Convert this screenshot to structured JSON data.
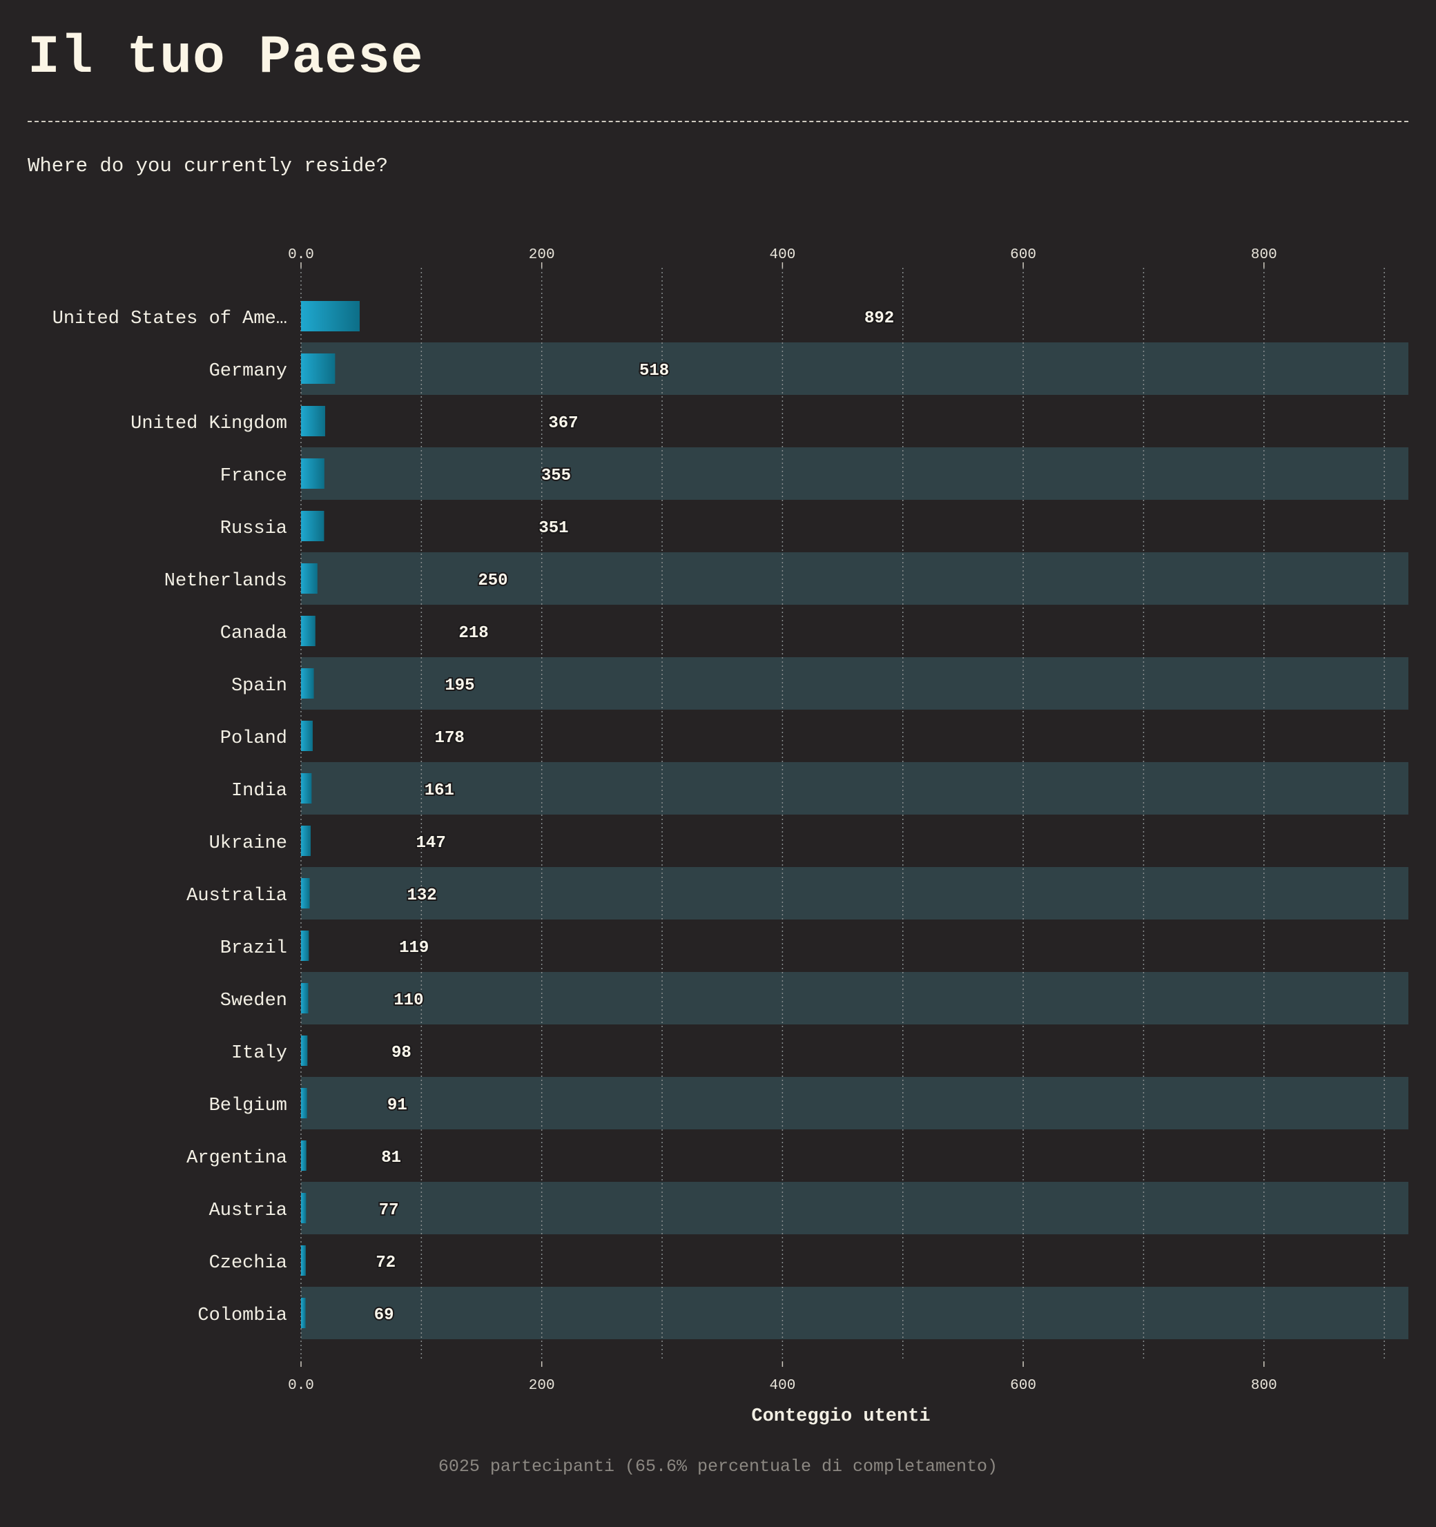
{
  "page": {
    "title": "Il tuo Paese",
    "subtitle": "Where do you currently reside?",
    "footnote": "6025 partecipanti (65.6% percentuale di completamento)"
  },
  "colors": {
    "background": "#262324",
    "band": "#304247",
    "bar_light": "#1fa6cc",
    "bar_dark": "#0d6e87",
    "grid": "#8a8f90",
    "text": "#f2efe4"
  },
  "chart_data": {
    "type": "bar",
    "orientation": "horizontal",
    "xlabel": "Conteggio utenti",
    "ylabel": "",
    "xlim": [
      0,
      920
    ],
    "x_ticks": [
      0,
      200,
      400,
      600,
      800
    ],
    "x_tick_labels": [
      "0.0",
      "200",
      "400",
      "600",
      "800"
    ],
    "grid": true,
    "categories": [
      "United States of Ame…",
      "Germany",
      "United Kingdom",
      "France",
      "Russia",
      "Netherlands",
      "Canada",
      "Spain",
      "Poland",
      "India",
      "Ukraine",
      "Australia",
      "Brazil",
      "Sweden",
      "Italy",
      "Belgium",
      "Argentina",
      "Austria",
      "Czechia",
      "Colombia"
    ],
    "values": [
      892,
      518,
      367,
      355,
      351,
      250,
      218,
      195,
      178,
      161,
      147,
      132,
      119,
      110,
      98,
      91,
      81,
      77,
      72,
      69
    ],
    "value_labels": [
      "892",
      "518",
      "367",
      "355",
      "351",
      "250",
      "218",
      "195",
      "178",
      "161",
      "147",
      "132",
      "119",
      "110",
      "98",
      "91",
      "81",
      "77",
      "72",
      "69"
    ]
  }
}
